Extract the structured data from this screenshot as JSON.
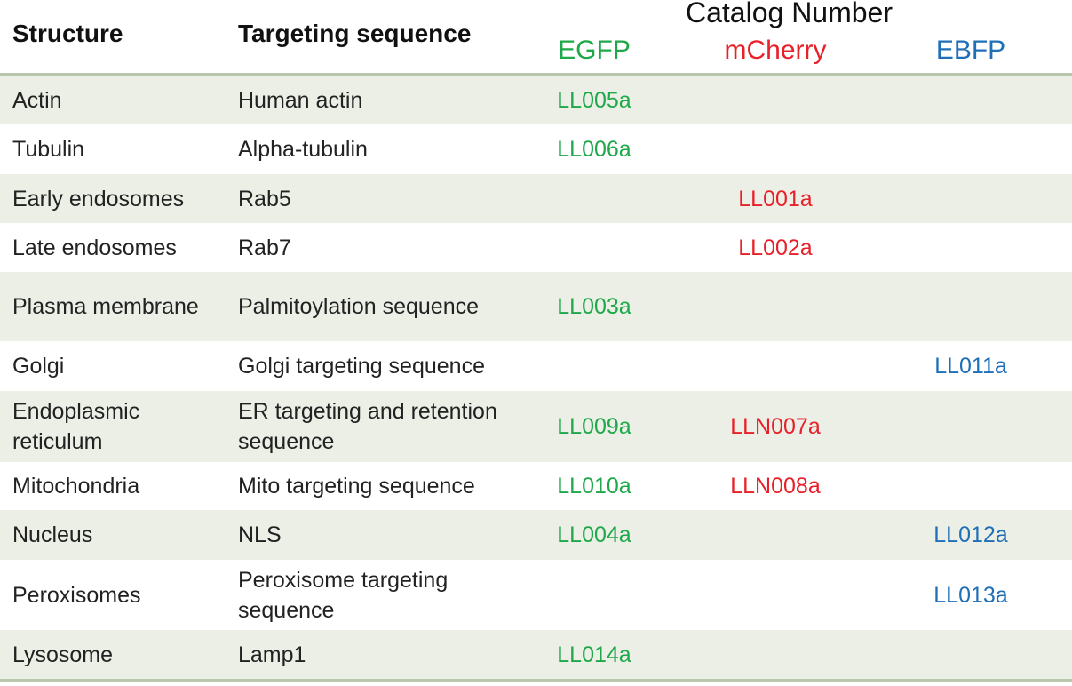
{
  "header": {
    "structure": "Structure",
    "targeting": "Targeting sequence",
    "catalog": "Catalog Number",
    "egfp": "EGFP",
    "mcherry": "mCherry",
    "ebfp": "EBFP"
  },
  "colors": {
    "egfp": "#1fa84a",
    "mcherry": "#e8202a",
    "ebfp": "#1f6fb8",
    "row_shade": "#ecefe6",
    "rule": "#b9c8ad"
  },
  "rows": [
    {
      "structure": "Actin",
      "targeting": "Human actin",
      "egfp": "LL005a",
      "mcherry": "",
      "ebfp": ""
    },
    {
      "structure": "Tubulin",
      "targeting": "Alpha-tubulin",
      "egfp": "LL006a",
      "mcherry": "",
      "ebfp": ""
    },
    {
      "structure": "Early endosomes",
      "targeting": "Rab5",
      "egfp": "",
      "mcherry": "LL001a",
      "ebfp": ""
    },
    {
      "structure": "Late endosomes",
      "targeting": "Rab7",
      "egfp": "",
      "mcherry": "LL002a",
      "ebfp": ""
    },
    {
      "structure": "Plasma membrane",
      "targeting": "Palmitoylation sequence",
      "egfp": "LL003a",
      "mcherry": "",
      "ebfp": ""
    },
    {
      "structure": "Golgi",
      "targeting": "Golgi targeting sequence",
      "egfp": "",
      "mcherry": "",
      "ebfp": "LL011a"
    },
    {
      "structure": "Endoplasmic reticulum",
      "targeting": "ER targeting and retention sequence",
      "egfp": "LL009a",
      "mcherry": "LLN007a",
      "ebfp": ""
    },
    {
      "structure": "Mitochondria",
      "targeting": "Mito targeting sequence",
      "egfp": "LL010a",
      "mcherry": "LLN008a",
      "ebfp": ""
    },
    {
      "structure": "Nucleus",
      "targeting": "NLS",
      "egfp": "LL004a",
      "mcherry": "",
      "ebfp": "LL012a"
    },
    {
      "structure": "Peroxisomes",
      "targeting": "Peroxisome targeting sequence",
      "egfp": "",
      "mcherry": "",
      "ebfp": "LL013a"
    },
    {
      "structure": "Lysosome",
      "targeting": "Lamp1",
      "egfp": "LL014a",
      "mcherry": "",
      "ebfp": ""
    }
  ]
}
